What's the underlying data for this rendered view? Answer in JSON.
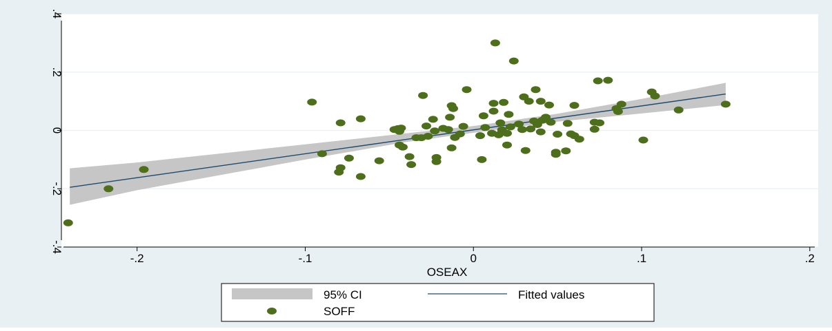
{
  "chart_data": {
    "type": "scatter",
    "xlabel": "OSEAX",
    "ylabel": "",
    "xlim": [
      -0.245,
      0.205
    ],
    "ylim": [
      -0.4,
      0.4
    ],
    "x_ticks": [
      {
        "value": -0.2,
        "label": "-.2"
      },
      {
        "value": -0.1,
        "label": "-.1"
      },
      {
        "value": 0,
        "label": "0"
      },
      {
        "value": 0.1,
        "label": ".1"
      },
      {
        "value": 0.2,
        "label": ".2"
      }
    ],
    "y_ticks": [
      {
        "value": -0.4,
        "label": "-.4"
      },
      {
        "value": -0.2,
        "label": "-.2"
      },
      {
        "value": 0,
        "label": "0"
      },
      {
        "value": 0.2,
        "label": ".2"
      },
      {
        "value": 0.4,
        "label": ".4"
      }
    ],
    "grid": true,
    "legend_position": "bottom",
    "legend": [
      {
        "label": "95% CI",
        "kind": "band"
      },
      {
        "label": "Fitted values",
        "kind": "line"
      },
      {
        "label": "SOFF",
        "kind": "marker"
      }
    ],
    "colors": {
      "outer_background": "#e9f0f4",
      "plot_background": "#ffffff",
      "gridline": "#e9f0f4",
      "ci_band": "#c6c6c6",
      "fitted_line": "#1c4a6e",
      "points": "#4d6e1b",
      "axis": "#000000"
    },
    "series": [
      {
        "name": "SOFF",
        "kind": "scatter",
        "points": [
          [
            -0.241,
            -0.317
          ],
          [
            -0.217,
            -0.2
          ],
          [
            -0.196,
            -0.134
          ],
          [
            -0.096,
            0.097
          ],
          [
            -0.09,
            -0.08
          ],
          [
            -0.08,
            -0.143
          ],
          [
            -0.079,
            -0.128
          ],
          [
            -0.079,
            0.026
          ],
          [
            -0.074,
            -0.095
          ],
          [
            -0.067,
            0.04
          ],
          [
            -0.067,
            -0.158
          ],
          [
            -0.056,
            -0.104
          ],
          [
            -0.047,
            0.003
          ],
          [
            -0.045,
            0.006
          ],
          [
            -0.044,
            -0.003
          ],
          [
            -0.043,
            0.008
          ],
          [
            -0.044,
            -0.05
          ],
          [
            -0.042,
            -0.057
          ],
          [
            -0.038,
            -0.09
          ],
          [
            -0.037,
            -0.117
          ],
          [
            -0.034,
            -0.025
          ],
          [
            -0.031,
            -0.025
          ],
          [
            -0.03,
            0.12
          ],
          [
            -0.028,
            0.015
          ],
          [
            -0.027,
            -0.02
          ],
          [
            -0.024,
            0.038
          ],
          [
            -0.023,
            -0.002
          ],
          [
            -0.022,
            -0.107
          ],
          [
            -0.022,
            -0.093
          ],
          [
            -0.018,
            0.007
          ],
          [
            -0.015,
            0.003
          ],
          [
            -0.014,
            0.045
          ],
          [
            -0.013,
            0.085
          ],
          [
            -0.012,
            0.075
          ],
          [
            -0.013,
            -0.06
          ],
          [
            -0.011,
            -0.024
          ],
          [
            -0.008,
            -0.012
          ],
          [
            -0.006,
            0.014
          ],
          [
            -0.004,
            0.14
          ],
          [
            0.004,
            -0.018
          ],
          [
            0.006,
            0.05
          ],
          [
            0.007,
            0.01
          ],
          [
            0.005,
            -0.1
          ],
          [
            0.011,
            -0.01
          ],
          [
            0.012,
            0.066
          ],
          [
            0.012,
            0.093
          ],
          [
            0.015,
            -0.015
          ],
          [
            0.016,
            0.026
          ],
          [
            0.013,
            0.3
          ],
          [
            0.017,
            0.002
          ],
          [
            0.018,
            0.096
          ],
          [
            0.02,
            -0.01
          ],
          [
            0.021,
            0.055
          ],
          [
            0.022,
            0.012
          ],
          [
            0.02,
            -0.05
          ],
          [
            0.024,
            0.238
          ],
          [
            0.027,
            0.022
          ],
          [
            0.029,
            0.003
          ],
          [
            0.03,
            0.115
          ],
          [
            0.031,
            -0.069
          ],
          [
            0.033,
            0.1
          ],
          [
            0.034,
            0.005
          ],
          [
            0.036,
            0.032
          ],
          [
            0.037,
            0.14
          ],
          [
            0.038,
            0.02
          ],
          [
            0.04,
            0.1
          ],
          [
            0.04,
            -0.005
          ],
          [
            0.041,
            0.035
          ],
          [
            0.043,
            0.045
          ],
          [
            0.045,
            0.087
          ],
          [
            0.046,
            0.028
          ],
          [
            0.049,
            -0.075
          ],
          [
            0.049,
            -0.082
          ],
          [
            0.05,
            -0.013
          ],
          [
            0.055,
            -0.07
          ],
          [
            0.056,
            0.024
          ],
          [
            0.058,
            -0.012
          ],
          [
            0.06,
            -0.018
          ],
          [
            0.06,
            0.086
          ],
          [
            0.063,
            -0.03
          ],
          [
            0.072,
            0.028
          ],
          [
            0.072,
            0.004
          ],
          [
            0.074,
            0.17
          ],
          [
            0.075,
            0.026
          ],
          [
            0.08,
            0.172
          ],
          [
            0.085,
            0.075
          ],
          [
            0.086,
            0.065
          ],
          [
            0.088,
            0.09
          ],
          [
            0.101,
            -0.033
          ],
          [
            0.106,
            0.132
          ],
          [
            0.108,
            0.118
          ],
          [
            0.122,
            0.07
          ],
          [
            0.15,
            0.09
          ]
        ]
      },
      {
        "name": "Fitted values",
        "kind": "line",
        "points": [
          [
            -0.24,
            -0.195
          ],
          [
            0.15,
            0.125
          ]
        ]
      },
      {
        "name": "95% CI",
        "kind": "band",
        "lower": [
          [
            -0.24,
            -0.255
          ],
          [
            -0.2,
            -0.205
          ],
          [
            -0.1,
            -0.1
          ],
          [
            -0.04,
            -0.04
          ],
          [
            0.0,
            -0.008
          ],
          [
            0.05,
            0.03
          ],
          [
            0.1,
            0.058
          ],
          [
            0.15,
            0.087
          ]
        ],
        "upper": [
          [
            -0.24,
            -0.13
          ],
          [
            -0.2,
            -0.11
          ],
          [
            -0.1,
            -0.048
          ],
          [
            -0.04,
            -0.01
          ],
          [
            0.0,
            0.015
          ],
          [
            0.05,
            0.057
          ],
          [
            0.1,
            0.108
          ],
          [
            0.15,
            0.163
          ]
        ]
      }
    ]
  }
}
